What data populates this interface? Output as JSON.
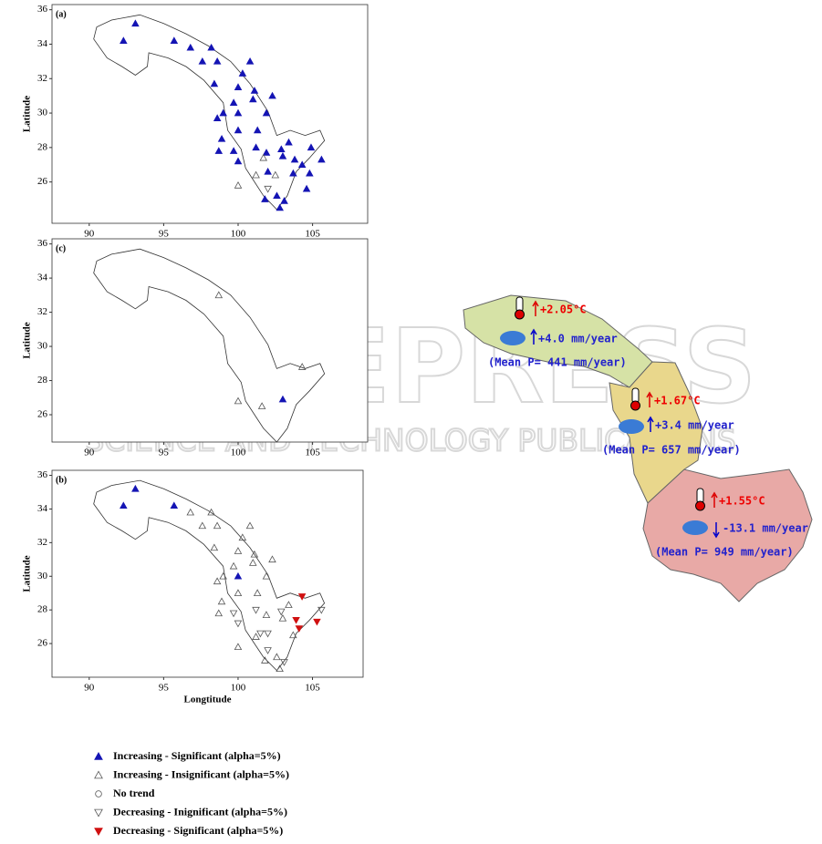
{
  "watermark": {
    "title": "SCITEPRESS",
    "subtitle": "SCIENCE AND TECHNOLOGY PUBLICATIONS"
  },
  "panels": [
    {
      "label": "(a)",
      "xlim": [
        87.5,
        108.7
      ],
      "ylim": [
        23.6,
        36.3
      ],
      "xticks": [
        90,
        95,
        100,
        105
      ],
      "yticks": [
        26,
        28,
        30,
        32,
        34,
        36
      ],
      "y_label": "Latitude",
      "stations": [
        [
          93.1,
          35.2,
          0
        ],
        [
          92.3,
          34.2,
          0
        ],
        [
          95.7,
          34.2,
          0
        ],
        [
          96.8,
          33.8,
          0
        ],
        [
          98.2,
          33.8,
          0
        ],
        [
          97.6,
          33.0,
          0
        ],
        [
          98.6,
          33.0,
          0
        ],
        [
          100.8,
          33.0,
          0
        ],
        [
          100.3,
          32.3,
          0
        ],
        [
          100.0,
          31.5,
          0
        ],
        [
          98.4,
          31.7,
          0
        ],
        [
          101.1,
          31.3,
          0
        ],
        [
          102.3,
          31.0,
          0
        ],
        [
          99.7,
          30.6,
          0
        ],
        [
          101.0,
          30.8,
          0
        ],
        [
          101.9,
          30.0,
          0
        ],
        [
          98.6,
          29.7,
          0
        ],
        [
          99.0,
          30.0,
          0
        ],
        [
          100.0,
          30.0,
          0
        ],
        [
          100.0,
          29.0,
          0
        ],
        [
          101.3,
          29.0,
          0
        ],
        [
          98.9,
          28.5,
          0
        ],
        [
          98.7,
          27.8,
          0
        ],
        [
          99.7,
          27.8,
          0
        ],
        [
          101.2,
          28.0,
          0
        ],
        [
          101.9,
          27.7,
          0
        ],
        [
          102.9,
          27.9,
          0
        ],
        [
          103.4,
          28.3,
          0
        ],
        [
          104.9,
          28.0,
          0
        ],
        [
          105.6,
          27.3,
          0
        ],
        [
          103.0,
          27.5,
          0
        ],
        [
          100.0,
          27.2,
          0
        ],
        [
          103.8,
          27.3,
          0
        ],
        [
          104.3,
          27.0,
          0
        ],
        [
          103.7,
          26.5,
          0
        ],
        [
          104.8,
          26.5,
          0
        ],
        [
          102.0,
          26.6,
          0
        ],
        [
          101.2,
          26.4,
          1
        ],
        [
          101.7,
          27.4,
          1
        ],
        [
          102.5,
          26.4,
          1
        ],
        [
          100.0,
          25.8,
          1
        ],
        [
          102.0,
          25.6,
          3
        ],
        [
          104.6,
          25.6,
          0
        ],
        [
          102.6,
          25.2,
          0
        ],
        [
          101.8,
          25.0,
          0
        ],
        [
          103.1,
          24.9,
          0
        ],
        [
          102.8,
          24.5,
          0
        ]
      ]
    },
    {
      "label": "(c)",
      "xlim": [
        87.5,
        108.7
      ],
      "ylim": [
        24.4,
        36.3
      ],
      "xticks": [
        90,
        95,
        100,
        105
      ],
      "yticks": [
        26,
        28,
        30,
        32,
        34,
        36
      ],
      "y_label": "Latitude",
      "stations": [
        [
          98.7,
          33.0,
          1
        ],
        [
          104.3,
          28.8,
          1
        ],
        [
          103.0,
          26.9,
          0
        ],
        [
          100.0,
          26.8,
          1
        ],
        [
          101.6,
          26.5,
          1
        ]
      ]
    },
    {
      "label": "(b)",
      "xlim": [
        87.5,
        108.4
      ],
      "ylim": [
        24.0,
        36.3
      ],
      "xticks": [
        90,
        95,
        100,
        105
      ],
      "yticks": [
        26,
        28,
        30,
        32,
        34,
        36
      ],
      "y_label": "Latitude",
      "x_label": "Longtitude",
      "stations": [
        [
          93.1,
          35.2,
          0
        ],
        [
          92.3,
          34.2,
          0
        ],
        [
          95.7,
          34.2,
          0
        ],
        [
          96.8,
          33.8,
          1
        ],
        [
          98.2,
          33.8,
          1
        ],
        [
          97.6,
          33.0,
          1
        ],
        [
          98.6,
          33.0,
          1
        ],
        [
          100.8,
          33.0,
          1
        ],
        [
          100.3,
          32.3,
          1
        ],
        [
          100.0,
          31.5,
          1
        ],
        [
          98.4,
          31.7,
          1
        ],
        [
          101.1,
          31.3,
          1
        ],
        [
          102.3,
          31.0,
          1
        ],
        [
          99.7,
          30.6,
          1
        ],
        [
          101.0,
          30.8,
          1
        ],
        [
          101.9,
          30.0,
          1
        ],
        [
          98.6,
          29.7,
          1
        ],
        [
          99.0,
          30.0,
          1
        ],
        [
          100.0,
          30.0,
          0
        ],
        [
          100.0,
          29.0,
          1
        ],
        [
          101.3,
          29.0,
          1
        ],
        [
          98.9,
          28.5,
          1
        ],
        [
          98.7,
          27.8,
          1
        ],
        [
          99.7,
          27.8,
          3
        ],
        [
          101.2,
          28.0,
          3
        ],
        [
          101.9,
          27.7,
          1
        ],
        [
          102.9,
          27.9,
          3
        ],
        [
          103.4,
          28.3,
          1
        ],
        [
          104.3,
          28.8,
          4
        ],
        [
          105.6,
          28.0,
          3
        ],
        [
          105.3,
          27.3,
          4
        ],
        [
          103.0,
          27.5,
          1
        ],
        [
          100.0,
          27.2,
          3
        ],
        [
          103.9,
          27.4,
          4
        ],
        [
          104.1,
          26.9,
          4
        ],
        [
          103.7,
          26.5,
          1
        ],
        [
          101.5,
          26.6,
          3
        ],
        [
          102.0,
          26.6,
          3
        ],
        [
          101.2,
          26.4,
          1
        ],
        [
          100.0,
          25.8,
          1
        ],
        [
          102.0,
          25.6,
          3
        ],
        [
          102.6,
          25.2,
          1
        ],
        [
          101.8,
          25.0,
          1
        ],
        [
          103.1,
          24.9,
          3
        ],
        [
          102.8,
          24.5,
          1
        ]
      ]
    }
  ],
  "legend": [
    {
      "label": "Increasing - Significant (alpha=5%)",
      "shape": "up",
      "filled": true,
      "color": "#1414b4"
    },
    {
      "label": "Increasing - Insignificant (alpha=5%)",
      "shape": "up",
      "filled": false,
      "color": "#555555"
    },
    {
      "label": "No trend",
      "shape": "circle",
      "filled": false,
      "color": "#555555"
    },
    {
      "label": "Decreasing - Inignificant (alpha=5%)",
      "shape": "down",
      "filled": false,
      "color": "#555555"
    },
    {
      "label": "Decreasing - Significant (alpha=5%)",
      "shape": "down",
      "filled": true,
      "color": "#d01010"
    }
  ],
  "region_map": {
    "regions": [
      {
        "temp": "+2.05°C",
        "precip": "+4.0 mm/year",
        "mean": "(Mean P= 441 mm/year)"
      },
      {
        "temp": "+1.67°C",
        "precip": "+3.4 mm/year",
        "mean": "(Mean P= 657 mm/year)"
      },
      {
        "temp": "+1.55°C",
        "precip": "-13.1 mm/year",
        "mean": "(Mean P= 949 mm/year)"
      }
    ]
  }
}
